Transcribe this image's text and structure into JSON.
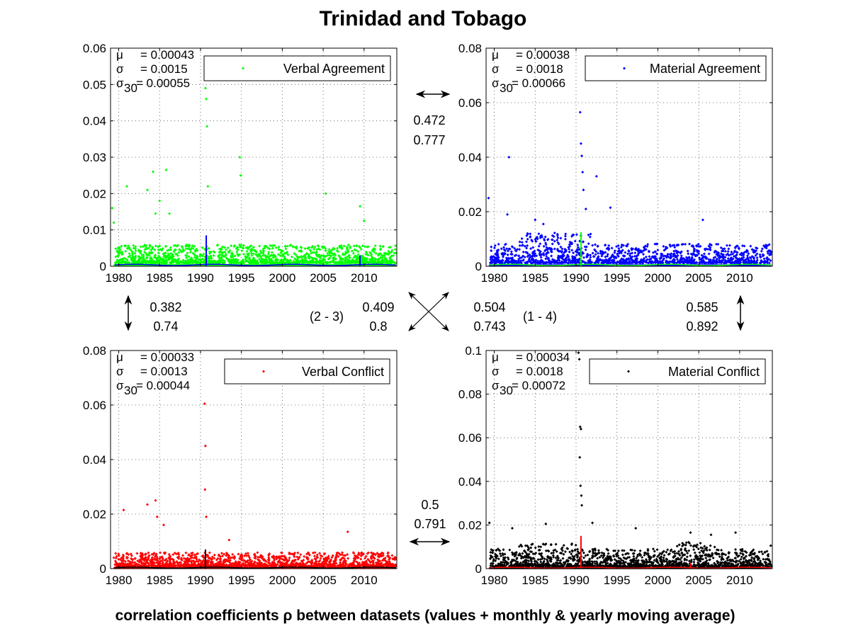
{
  "figure": {
    "title": "Trinidad and Tobago",
    "footer": "correlation coefficients ρ between datasets (values + monthly & yearly moving average)"
  },
  "chart_data": [
    {
      "type": "scatter",
      "id": "verbal-agreement",
      "legend": "Verbal Agreement",
      "color": "#00ff00",
      "avg_color": "#0000ff",
      "stats": {
        "mu": "= 0.00043",
        "sigma": "= 0.0015",
        "sigma30": "= 0.00055"
      },
      "xlim": [
        1979,
        2014
      ],
      "ylim": [
        0,
        0.06
      ],
      "xticks": [
        1980,
        1985,
        1990,
        1995,
        2000,
        2005,
        2010
      ],
      "yticks": [
        "0",
        "0.01",
        "0.02",
        "0.03",
        "0.04",
        "0.05",
        "0.06"
      ],
      "base": 0.003,
      "spread": 0.005,
      "outliers": [
        [
          1979.2,
          0.016
        ],
        [
          1979.4,
          0.012
        ],
        [
          1981.0,
          0.022
        ],
        [
          1983.5,
          0.021
        ],
        [
          1984.2,
          0.026
        ],
        [
          1985.0,
          0.018
        ],
        [
          1985.8,
          0.0265
        ],
        [
          1990.6,
          0.049
        ],
        [
          1990.7,
          0.046
        ],
        [
          1990.8,
          0.0385
        ],
        [
          1990.9,
          0.022
        ],
        [
          1994.8,
          0.03
        ],
        [
          1994.9,
          0.025
        ],
        [
          2005.3,
          0.02
        ],
        [
          2009.5,
          0.0165
        ],
        [
          2010.0,
          0.0125
        ],
        [
          1984.5,
          0.0145
        ],
        [
          1986.2,
          0.0145
        ]
      ],
      "avg_spikes": [
        [
          1990.7,
          0.0085
        ],
        [
          2009.5,
          0.003
        ]
      ]
    },
    {
      "type": "scatter",
      "id": "material-agreement",
      "legend": "Material Agreement",
      "color": "#0000ff",
      "avg_color": "#00ff00",
      "stats": {
        "mu": "= 0.00038",
        "sigma": "= 0.0018",
        "sigma30": "= 0.00066"
      },
      "xlim": [
        1979,
        2014
      ],
      "ylim": [
        0,
        0.08
      ],
      "xticks": [
        1980,
        1985,
        1990,
        1995,
        2000,
        2005,
        2010
      ],
      "yticks": [
        "0",
        "0.02",
        "0.04",
        "0.06",
        "0.08"
      ],
      "base": 0.004,
      "spread": 0.007,
      "outliers": [
        [
          1979.3,
          0.025
        ],
        [
          1981.8,
          0.04
        ],
        [
          1981.6,
          0.019
        ],
        [
          1990.5,
          0.0565
        ],
        [
          1990.6,
          0.045
        ],
        [
          1990.7,
          0.0405
        ],
        [
          1990.8,
          0.0345
        ],
        [
          1990.9,
          0.028
        ],
        [
          1991.2,
          0.021
        ],
        [
          1992.5,
          0.033
        ],
        [
          1994.2,
          0.0215
        ],
        [
          1985.0,
          0.017
        ],
        [
          1986.0,
          0.0155
        ],
        [
          2005.5,
          0.017
        ]
      ],
      "avg_spikes": [
        [
          1990.6,
          0.0125
        ]
      ]
    },
    {
      "type": "scatter",
      "id": "verbal-conflict",
      "legend": "Verbal Conflict",
      "color": "#ff0000",
      "avg_color": "#000000",
      "stats": {
        "mu": "= 0.00033",
        "sigma": "= 0.0013",
        "sigma30": "= 0.00044"
      },
      "xlim": [
        1979,
        2014
      ],
      "ylim": [
        0,
        0.08
      ],
      "xticks": [
        1980,
        1985,
        1990,
        1995,
        2000,
        2005,
        2010
      ],
      "yticks": [
        "0",
        "0.02",
        "0.04",
        "0.06",
        "0.08"
      ],
      "base": 0.003,
      "spread": 0.005,
      "outliers": [
        [
          1979.4,
          0.004
        ],
        [
          1980.6,
          0.0215
        ],
        [
          1983.5,
          0.0235
        ],
        [
          1984.5,
          0.025
        ],
        [
          1984.7,
          0.019
        ],
        [
          1990.5,
          0.0605
        ],
        [
          1990.6,
          0.045
        ],
        [
          1990.55,
          0.029
        ],
        [
          1990.7,
          0.019
        ],
        [
          2008.0,
          0.0135
        ],
        [
          1985.5,
          0.016
        ],
        [
          1993.5,
          0.0105
        ]
      ],
      "avg_spikes": [
        [
          1990.6,
          0.007
        ]
      ]
    },
    {
      "type": "scatter",
      "id": "material-conflict",
      "legend": "Material Conflict",
      "color": "#000000",
      "avg_color": "#ff0000",
      "stats": {
        "mu": "= 0.00034",
        "sigma": "= 0.0018",
        "sigma30": "= 0.00072"
      },
      "xlim": [
        1979,
        2014
      ],
      "ylim": [
        0,
        0.1
      ],
      "xticks": [
        1980,
        1985,
        1990,
        1995,
        2000,
        2005,
        2010
      ],
      "yticks": [
        "0",
        "0.02",
        "0.04",
        "0.06",
        "0.08",
        "0.1"
      ],
      "base": 0.0035,
      "spread": 0.008,
      "outliers": [
        [
          1979.4,
          0.021
        ],
        [
          1982.2,
          0.0185
        ],
        [
          1986.3,
          0.0205
        ],
        [
          1990.3,
          0.099
        ],
        [
          1990.4,
          0.096
        ],
        [
          1990.5,
          0.065
        ],
        [
          1990.6,
          0.064
        ],
        [
          1990.45,
          0.051
        ],
        [
          1990.55,
          0.038
        ],
        [
          1990.65,
          0.0335
        ],
        [
          1990.7,
          0.029
        ],
        [
          1992.0,
          0.021
        ],
        [
          1997.3,
          0.0185
        ],
        [
          2004.0,
          0.0165
        ],
        [
          2006.5,
          0.0155
        ],
        [
          2009.5,
          0.0165
        ],
        [
          2013.8,
          0.0105
        ]
      ],
      "avg_spikes": [
        [
          1990.6,
          0.015
        ],
        [
          2004.0,
          0.0025
        ]
      ]
    }
  ],
  "correlations": {
    "top": {
      "v1": "0.472",
      "v2": "0.777"
    },
    "left": {
      "v1": "0.382",
      "v2": "0.74"
    },
    "right": {
      "v1": "0.585",
      "v2": "0.892"
    },
    "bottom": {
      "v1": "0.5",
      "v2": "0.791"
    },
    "diag_left": {
      "label": "(2 - 3)",
      "v1": "0.409",
      "v2": "0.8"
    },
    "diag_right": {
      "label": "(1 - 4)",
      "v1": "0.504",
      "v2": "0.743"
    }
  },
  "symbols": {
    "mu": "μ",
    "sigma": "σ",
    "sub30": "30"
  }
}
